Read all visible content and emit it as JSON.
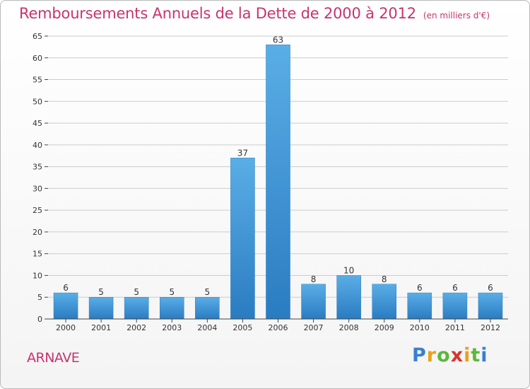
{
  "header": {
    "title": "Remboursements Annuels de la Dette de 2000 à 2012",
    "subtitle": "(en milliers d'€)"
  },
  "footer": {
    "commune": "ARNAVE",
    "logo_text": "Proxiti",
    "logo_colors": [
      "#3a7fd0",
      "#e8a21c",
      "#5bb83a",
      "#d9342b",
      "#e8a21c",
      "#5bb83a",
      "#3a7fd0"
    ]
  },
  "colors": {
    "bar_top": "#5aaee6",
    "bar_bottom": "#2a7cc1",
    "grid": "#cccccc",
    "title": "#c8336e"
  },
  "chart_data": {
    "type": "bar",
    "categories": [
      "2000",
      "2001",
      "2002",
      "2003",
      "2004",
      "2005",
      "2006",
      "2007",
      "2008",
      "2009",
      "2010",
      "2011",
      "2012"
    ],
    "values": [
      6,
      5,
      5,
      5,
      5,
      37,
      63,
      8,
      10,
      8,
      6,
      6,
      6
    ],
    "title": "Remboursements Annuels de la Dette de 2000 à 2012",
    "subtitle": "(en milliers d'€)",
    "xlabel": "",
    "ylabel": "",
    "ylim": [
      0,
      65
    ],
    "yticks": [
      0,
      5,
      10,
      15,
      20,
      25,
      30,
      35,
      40,
      45,
      50,
      55,
      60,
      65
    ],
    "grid": true,
    "data_labels": true
  }
}
